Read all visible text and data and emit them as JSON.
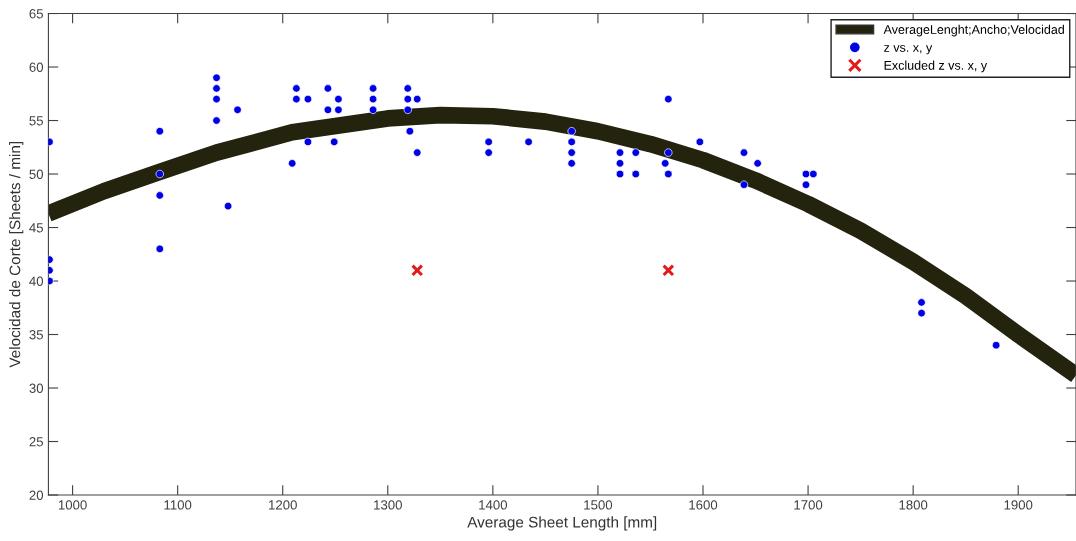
{
  "chart_data": {
    "type": "scatter",
    "xlabel": "Average Sheet Length [mm]",
    "ylabel": "Velocidad de Corte [Sheets / min]",
    "xlim": [
      977,
      1955
    ],
    "ylim": [
      20,
      65
    ],
    "xticks": [
      1000,
      1100,
      1200,
      1300,
      1400,
      1500,
      1600,
      1700,
      1800,
      1900
    ],
    "yticks": [
      20,
      25,
      30,
      35,
      40,
      45,
      50,
      55,
      60,
      65
    ],
    "grid": false,
    "legend": "top right",
    "series": [
      {
        "name": "AverageLenght;Ancho;Velocidad",
        "type": "line",
        "color": "#24240e",
        "marker": "none",
        "line_style": "solid",
        "x": [
          977,
          1030,
          1083,
          1137,
          1209,
          1300,
          1350,
          1400,
          1450,
          1500,
          1550,
          1600,
          1650,
          1700,
          1750,
          1800,
          1850,
          1900,
          1955
        ],
        "values": [
          46.3,
          48.4,
          50.2,
          52,
          53.9,
          55.2,
          55.5,
          55.4,
          54.9,
          54,
          52.8,
          51.3,
          49.4,
          47.2,
          44.7,
          41.8,
          38.6,
          35,
          31.2
        ]
      },
      {
        "name": "z vs. x, y",
        "color": "#0000e6",
        "marker": "circle",
        "x": [
          978,
          978,
          978,
          978,
          1083,
          1083,
          1083,
          1083,
          1137,
          1137,
          1137,
          1137,
          1148,
          1157,
          1209,
          1213,
          1213,
          1224,
          1224,
          1243,
          1243,
          1249,
          1253,
          1253,
          1286,
          1286,
          1286,
          1319,
          1319,
          1319,
          1321,
          1328,
          1328,
          1396,
          1396,
          1434,
          1475,
          1475,
          1475,
          1475,
          1521,
          1521,
          1521,
          1536,
          1536,
          1567,
          1567,
          1564,
          1567,
          1597,
          1639,
          1639,
          1652,
          1698,
          1698,
          1705,
          1808,
          1808,
          1879
        ],
        "values": [
          53,
          42,
          41,
          40,
          54,
          50,
          48,
          43,
          59,
          58,
          57,
          55,
          47,
          56,
          51,
          58,
          57,
          57,
          53,
          58,
          56,
          53,
          57,
          56,
          58,
          57,
          56,
          58,
          57,
          56,
          54,
          57,
          52,
          53,
          52,
          53,
          54,
          53,
          52,
          51,
          52,
          51,
          50,
          52,
          50,
          57,
          52,
          51,
          50,
          53,
          52,
          49,
          51,
          50,
          49,
          50,
          38,
          37,
          34
        ]
      },
      {
        "name": "Excluded z vs. x, y",
        "color": "#e61919",
        "marker": "cross",
        "x": [
          1328,
          1567
        ],
        "values": [
          41,
          41
        ]
      }
    ]
  }
}
